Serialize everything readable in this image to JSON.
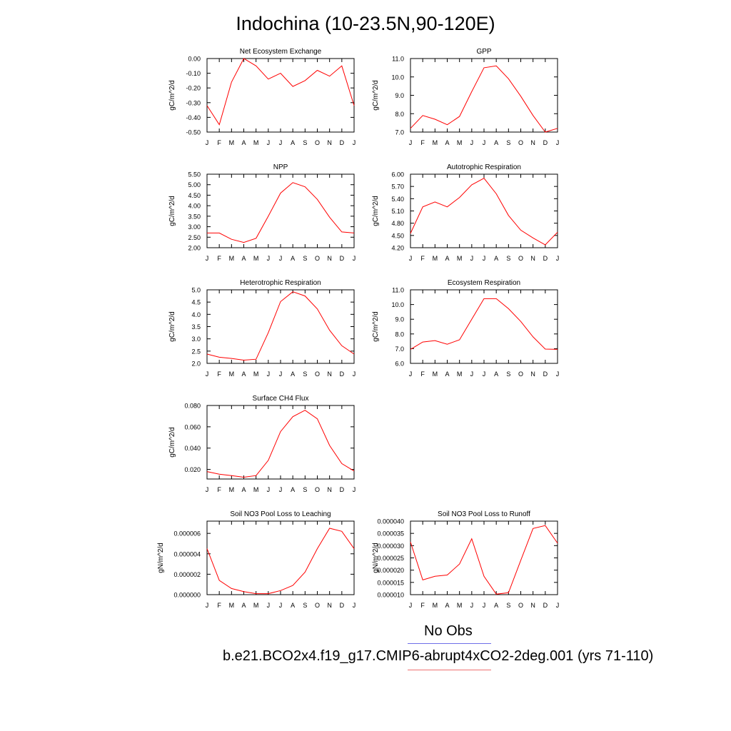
{
  "page": {
    "title": "Indochina (10-23.5N,90-120E)"
  },
  "legend": [
    {
      "label": "No Obs",
      "color": "#6f6fe8"
    },
    {
      "label": "b.e21.BCO2x4.f19_g17.CMIP6-abrupt4xCO2-2deg.001 (yrs 71-110)",
      "color": "#f07070"
    }
  ],
  "chart_data": [
    {
      "type": "line",
      "title": "Net Ecosystem Exchange",
      "ylabel": "gC/m^2/d",
      "categories": [
        "J",
        "F",
        "M",
        "A",
        "M",
        "J",
        "J",
        "A",
        "S",
        "O",
        "N",
        "D",
        "J"
      ],
      "ylim": [
        -0.5,
        0.0
      ],
      "yticks": [
        "0.00",
        "-0.10",
        "-0.20",
        "-0.30",
        "-0.40",
        "-0.50"
      ],
      "ytick_values": [
        0.0,
        -0.1,
        -0.2,
        -0.3,
        -0.4,
        -0.5
      ],
      "series": [
        {
          "color": "#ff0000",
          "values": [
            -0.32,
            -0.45,
            -0.16,
            0.0,
            -0.05,
            -0.14,
            -0.1,
            -0.19,
            -0.15,
            -0.08,
            -0.12,
            -0.05,
            -0.32
          ]
        }
      ]
    },
    {
      "type": "line",
      "title": "GPP",
      "ylabel": "gC/m^2/d",
      "categories": [
        "J",
        "F",
        "M",
        "A",
        "M",
        "J",
        "J",
        "A",
        "S",
        "O",
        "N",
        "D",
        "J"
      ],
      "ylim": [
        7.0,
        11.0
      ],
      "yticks": [
        "11.0",
        "10.0",
        "9.0",
        "8.0",
        "7.0"
      ],
      "ytick_values": [
        11.0,
        10.0,
        9.0,
        8.0,
        7.0
      ],
      "series": [
        {
          "color": "#ff0000",
          "values": [
            7.2,
            7.9,
            7.7,
            7.4,
            7.85,
            9.2,
            10.5,
            10.6,
            9.9,
            8.95,
            7.9,
            7.0,
            7.2
          ]
        }
      ]
    },
    {
      "type": "line",
      "title": "NPP",
      "ylabel": "gC/m^2/d",
      "categories": [
        "J",
        "F",
        "M",
        "A",
        "M",
        "J",
        "J",
        "A",
        "S",
        "O",
        "N",
        "D",
        "J"
      ],
      "ylim": [
        2.0,
        5.5
      ],
      "yticks": [
        "5.50",
        "5.00",
        "4.50",
        "4.00",
        "3.50",
        "3.00",
        "2.50",
        "2.00"
      ],
      "ytick_values": [
        5.5,
        5.0,
        4.5,
        4.0,
        3.5,
        3.0,
        2.5,
        2.0
      ],
      "series": [
        {
          "color": "#ff0000",
          "values": [
            2.7,
            2.7,
            2.4,
            2.25,
            2.45,
            3.5,
            4.6,
            5.1,
            4.9,
            4.3,
            3.45,
            2.75,
            2.7
          ]
        }
      ]
    },
    {
      "type": "line",
      "title": "Autotrophic Respiration",
      "ylabel": "gC/m^2/d",
      "categories": [
        "J",
        "F",
        "M",
        "A",
        "M",
        "J",
        "J",
        "A",
        "S",
        "O",
        "N",
        "D",
        "J"
      ],
      "ylim": [
        4.2,
        6.0
      ],
      "yticks": [
        "6.00",
        "5.70",
        "5.40",
        "5.10",
        "4.80",
        "4.50",
        "4.20"
      ],
      "ytick_values": [
        6.0,
        5.7,
        5.4,
        5.1,
        4.8,
        4.5,
        4.2
      ],
      "series": [
        {
          "color": "#ff0000",
          "values": [
            4.55,
            5.2,
            5.32,
            5.2,
            5.43,
            5.74,
            5.9,
            5.52,
            4.99,
            4.63,
            4.44,
            4.27,
            4.58
          ]
        }
      ]
    },
    {
      "type": "line",
      "title": "Heterotrophic Respiration",
      "ylabel": "gC/m^2/d",
      "categories": [
        "J",
        "F",
        "M",
        "A",
        "M",
        "J",
        "J",
        "A",
        "S",
        "O",
        "N",
        "D",
        "J"
      ],
      "ylim": [
        2.0,
        5.0
      ],
      "yticks": [
        "5.0",
        "4.5",
        "4.0",
        "3.5",
        "3.0",
        "2.5",
        "2.0"
      ],
      "ytick_values": [
        5.0,
        4.5,
        4.0,
        3.5,
        3.0,
        2.5,
        2.0
      ],
      "series": [
        {
          "color": "#ff0000",
          "values": [
            2.38,
            2.25,
            2.2,
            2.13,
            2.17,
            3.25,
            4.52,
            4.92,
            4.75,
            4.22,
            3.35,
            2.72,
            2.38
          ]
        }
      ]
    },
    {
      "type": "line",
      "title": "Ecosystem Respiration",
      "ylabel": "gC/m^2/d",
      "categories": [
        "J",
        "F",
        "M",
        "A",
        "M",
        "J",
        "J",
        "A",
        "S",
        "O",
        "N",
        "D",
        "J"
      ],
      "ylim": [
        6.0,
        11.0
      ],
      "yticks": [
        "11.0",
        "10.0",
        "9.0",
        "8.0",
        "7.0",
        "6.0"
      ],
      "ytick_values": [
        11.0,
        10.0,
        9.0,
        8.0,
        7.0,
        6.0
      ],
      "series": [
        {
          "color": "#ff0000",
          "values": [
            6.95,
            7.45,
            7.55,
            7.3,
            7.6,
            9.0,
            10.4,
            10.4,
            9.72,
            8.85,
            7.8,
            6.97,
            6.95
          ]
        }
      ]
    },
    {
      "type": "line",
      "title": "Surface CH4 Flux",
      "ylabel": "gC/m^2/d",
      "categories": [
        "J",
        "F",
        "M",
        "A",
        "M",
        "J",
        "J",
        "A",
        "S",
        "O",
        "N",
        "D",
        "J"
      ],
      "ylim": [
        0.011,
        0.08
      ],
      "yticks": [
        "0.080",
        "0.060",
        "0.040",
        "0.020"
      ],
      "ytick_values": [
        0.08,
        0.06,
        0.04,
        0.02
      ],
      "series": [
        {
          "color": "#ff0000",
          "values": [
            0.018,
            0.0155,
            0.0142,
            0.0127,
            0.0142,
            0.0285,
            0.0555,
            0.0695,
            0.0755,
            0.0675,
            0.0425,
            0.0255,
            0.0185
          ]
        }
      ]
    },
    {
      "type": "line",
      "title": "Soil NO3 Pool Loss to Leaching",
      "ylabel": "gN/m^2/d",
      "categories": [
        "J",
        "F",
        "M",
        "A",
        "M",
        "J",
        "J",
        "A",
        "S",
        "O",
        "N",
        "D",
        "J"
      ],
      "ylim": [
        0.0,
        7.2e-06
      ],
      "yticks": [
        "0.000006",
        "0.000004",
        "0.000002",
        "0.000000"
      ],
      "ytick_values": [
        6e-06,
        4e-06,
        2e-06,
        0.0
      ],
      "series": [
        {
          "color": "#ff0000",
          "values": [
            4.5e-06,
            1.4e-06,
            6e-07,
            3e-07,
            1e-07,
            1e-07,
            4e-07,
            9e-07,
            2.2e-06,
            4.5e-06,
            6.5e-06,
            6.2e-06,
            4.5e-06
          ]
        }
      ]
    },
    {
      "type": "line",
      "title": "Soil NO3 Pool Loss to Runoff",
      "ylabel": "gN/m^2/d",
      "categories": [
        "J",
        "F",
        "M",
        "A",
        "M",
        "J",
        "J",
        "A",
        "S",
        "O",
        "N",
        "D",
        "J"
      ],
      "ylim": [
        1e-05,
        4e-05
      ],
      "yticks": [
        "0.000040",
        "0.000035",
        "0.000030",
        "0.000025",
        "0.000020",
        "0.000015",
        "0.000010"
      ],
      "ytick_values": [
        4e-05,
        3.5e-05,
        3e-05,
        2.5e-05,
        2e-05,
        1.5e-05,
        1e-05
      ],
      "series": [
        {
          "color": "#ff0000",
          "values": [
            3.15e-05,
            1.6e-05,
            1.75e-05,
            1.8e-05,
            2.25e-05,
            3.28e-05,
            1.75e-05,
            1.02e-05,
            1.08e-05,
            2.4e-05,
            3.7e-05,
            3.82e-05,
            3.1e-05
          ]
        }
      ]
    }
  ]
}
